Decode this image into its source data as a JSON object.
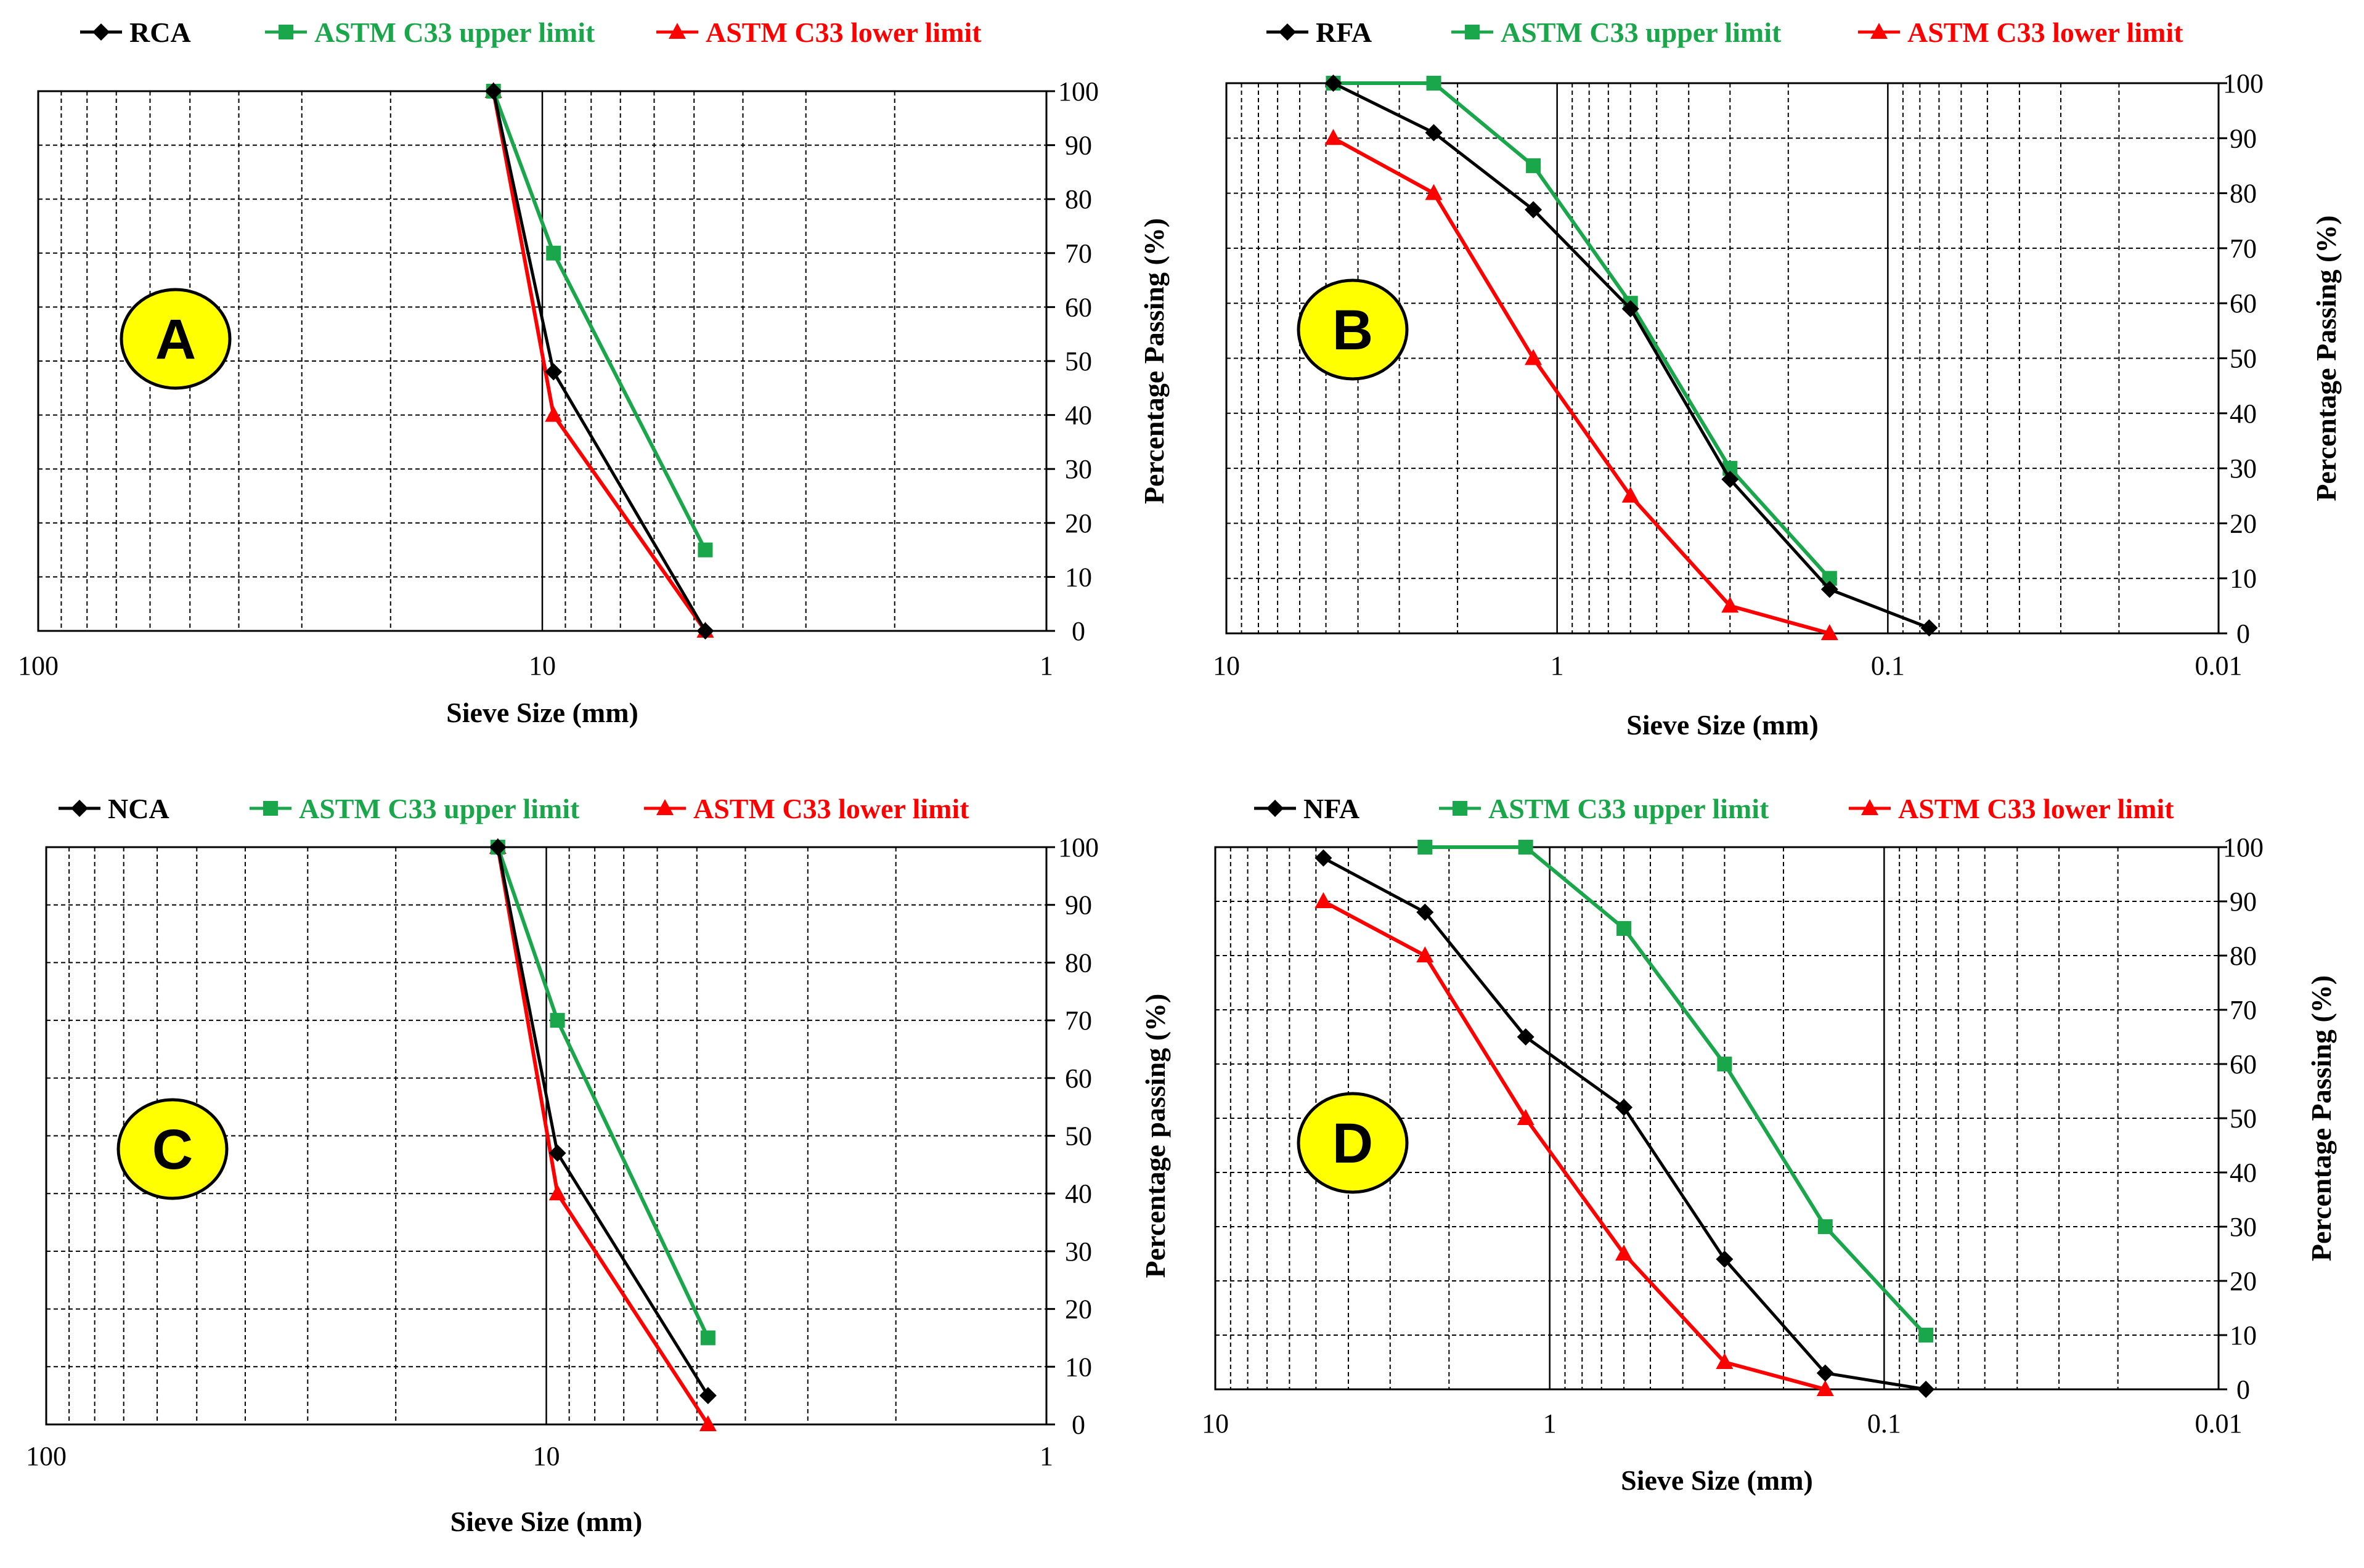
{
  "chart_data": [
    {
      "type": "line",
      "panel_label": "A",
      "xlabel": "Sieve Size (mm)",
      "ylabel": "Percentage Passing (%)",
      "x_scale": "log",
      "x_reversed": true,
      "xlim": [
        100,
        1
      ],
      "ylim": [
        0,
        100
      ],
      "x_ticks": [
        "100",
        "10",
        "1"
      ],
      "y_ticks": [
        "0",
        "10",
        "20",
        "30",
        "40",
        "50",
        "60",
        "70",
        "80",
        "90",
        "100"
      ],
      "grid": true,
      "legend_position": "top",
      "series": [
        {
          "name": "RCA",
          "color": "#000000",
          "marker": "diamond",
          "x": [
            12.5,
            9.5,
            4.75
          ],
          "y": [
            100,
            48,
            0
          ]
        },
        {
          "name": "ASTM C33 upper limit",
          "color": "#1aa64a",
          "marker": "square",
          "x": [
            12.5,
            9.5,
            4.75
          ],
          "y": [
            100,
            70,
            15
          ]
        },
        {
          "name": "ASTM C33 lower limit",
          "color": "#ff0000",
          "marker": "triangle",
          "x": [
            12.5,
            9.5,
            4.75
          ],
          "y": [
            100,
            40,
            0
          ]
        }
      ]
    },
    {
      "type": "line",
      "panel_label": "B",
      "xlabel": "Sieve Size (mm)",
      "ylabel": "Percentage Passing (%)",
      "x_scale": "log",
      "x_reversed": true,
      "xlim": [
        10,
        0.01
      ],
      "ylim": [
        0,
        100
      ],
      "x_ticks": [
        "10",
        "1",
        "0.1",
        "0.01"
      ],
      "y_ticks": [
        "0",
        "10",
        "20",
        "30",
        "40",
        "50",
        "60",
        "70",
        "80",
        "90",
        "100"
      ],
      "grid": true,
      "legend_position": "top",
      "series": [
        {
          "name": "RFA",
          "color": "#000000",
          "marker": "diamond",
          "x": [
            4.75,
            2.36,
            1.18,
            0.6,
            0.3,
            0.15,
            0.075
          ],
          "y": [
            100,
            91,
            77,
            59,
            28,
            8,
            1
          ]
        },
        {
          "name": "ASTM C33 upper limit",
          "color": "#1aa64a",
          "marker": "square",
          "x": [
            4.75,
            2.36,
            1.18,
            0.6,
            0.3,
            0.15
          ],
          "y": [
            100,
            100,
            85,
            60,
            30,
            10
          ]
        },
        {
          "name": "ASTM C33 lower limit",
          "color": "#ff0000",
          "marker": "triangle",
          "x": [
            4.75,
            2.36,
            1.18,
            0.6,
            0.3,
            0.15
          ],
          "y": [
            90,
            80,
            50,
            25,
            5,
            0
          ]
        }
      ]
    },
    {
      "type": "line",
      "panel_label": "C",
      "xlabel": "Sieve Size (mm)",
      "ylabel": "Percentage passing (%)",
      "x_scale": "log",
      "x_reversed": true,
      "xlim": [
        100,
        1
      ],
      "ylim": [
        0,
        100
      ],
      "x_ticks": [
        "100",
        "10",
        "1"
      ],
      "y_ticks": [
        "0",
        "10",
        "20",
        "30",
        "40",
        "50",
        "60",
        "70",
        "80",
        "90",
        "100"
      ],
      "grid": true,
      "legend_position": "top",
      "series": [
        {
          "name": "NCA",
          "color": "#000000",
          "marker": "diamond",
          "x": [
            12.5,
            9.5,
            4.75
          ],
          "y": [
            100,
            47,
            5
          ]
        },
        {
          "name": "ASTM C33 upper limit",
          "color": "#1aa64a",
          "marker": "square",
          "x": [
            12.5,
            9.5,
            4.75
          ],
          "y": [
            100,
            70,
            15
          ]
        },
        {
          "name": "ASTM C33 lower limit",
          "color": "#ff0000",
          "marker": "triangle",
          "x": [
            12.5,
            9.5,
            4.75
          ],
          "y": [
            100,
            40,
            0
          ]
        }
      ]
    },
    {
      "type": "line",
      "panel_label": "D",
      "xlabel": "Sieve Size (mm)",
      "ylabel": "Percentage Passing (%)",
      "x_scale": "log",
      "x_reversed": true,
      "xlim": [
        10,
        0.01
      ],
      "ylim": [
        0,
        100
      ],
      "x_ticks": [
        "10",
        "1",
        "0.1",
        "0.01"
      ],
      "y_ticks": [
        "0",
        "10",
        "20",
        "30",
        "40",
        "50",
        "60",
        "70",
        "80",
        "90",
        "100"
      ],
      "grid": true,
      "legend_position": "top",
      "series": [
        {
          "name": "NFA",
          "color": "#000000",
          "marker": "diamond",
          "x": [
            4.75,
            2.36,
            1.18,
            0.6,
            0.3,
            0.15,
            0.075
          ],
          "y": [
            98,
            88,
            65,
            52,
            24,
            3,
            0
          ]
        },
        {
          "name": "ASTM C33 upper limit",
          "color": "#1aa64a",
          "marker": "square",
          "x": [
            2.36,
            1.18,
            0.6,
            0.3,
            0.15,
            0.075
          ],
          "y": [
            100,
            100,
            85,
            60,
            30,
            10
          ]
        },
        {
          "name": "ASTM C33 lower limit",
          "color": "#ff0000",
          "marker": "triangle",
          "x": [
            4.75,
            2.36,
            1.18,
            0.6,
            0.3,
            0.15
          ],
          "y": [
            90,
            80,
            50,
            25,
            5,
            0
          ]
        }
      ]
    }
  ]
}
